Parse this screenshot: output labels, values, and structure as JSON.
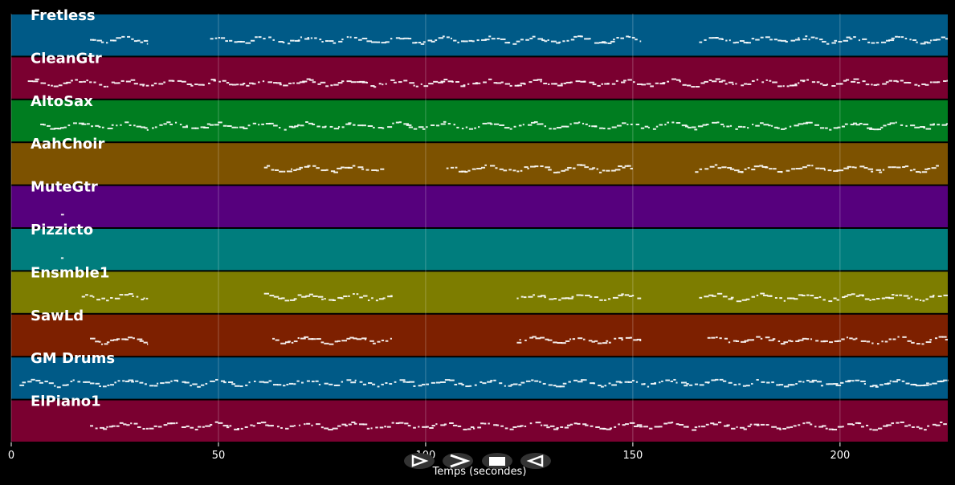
{
  "chart_data": {
    "type": "pianoroll",
    "x_label": "Temps (secondes)",
    "xlim": [
      0,
      226
    ],
    "xticks": [
      0,
      50,
      100,
      150,
      200
    ],
    "grid": true,
    "tracks": [
      {
        "name": "Fretless",
        "color": "#005a87",
        "segments": [
          [
            19,
            33
          ],
          [
            48,
            152
          ],
          [
            166,
            226
          ]
        ]
      },
      {
        "name": "CleanGtr",
        "color": "#7a0030",
        "segments": [
          [
            4,
            226
          ]
        ]
      },
      {
        "name": "AltoSax",
        "color": "#007d20",
        "segments": [
          [
            7,
            226
          ]
        ]
      },
      {
        "name": "AahChoir",
        "color": "#7d5200",
        "segments": [
          [
            61,
            90
          ],
          [
            105,
            150
          ],
          [
            165,
            224
          ]
        ]
      },
      {
        "name": "MuteGtr",
        "color": "#56007d",
        "segments": [
          [
            12,
            13
          ]
        ]
      },
      {
        "name": "Pizzicto",
        "color": "#007d7d",
        "segments": [
          [
            12,
            13
          ]
        ]
      },
      {
        "name": "Ensmble1",
        "color": "#7d7d00",
        "segments": [
          [
            17,
            33
          ],
          [
            61,
            92
          ],
          [
            122,
            152
          ],
          [
            166,
            226
          ]
        ]
      },
      {
        "name": "SawLd",
        "color": "#7d2000",
        "segments": [
          [
            19,
            33
          ],
          [
            63,
            92
          ],
          [
            122,
            152
          ],
          [
            168,
            226
          ]
        ]
      },
      {
        "name": "GM Drums",
        "color": "#005a87",
        "segments": [
          [
            2,
            226
          ]
        ]
      },
      {
        "name": "ElPiano1",
        "color": "#7a0030",
        "segments": [
          [
            19,
            226
          ]
        ]
      }
    ]
  }
}
